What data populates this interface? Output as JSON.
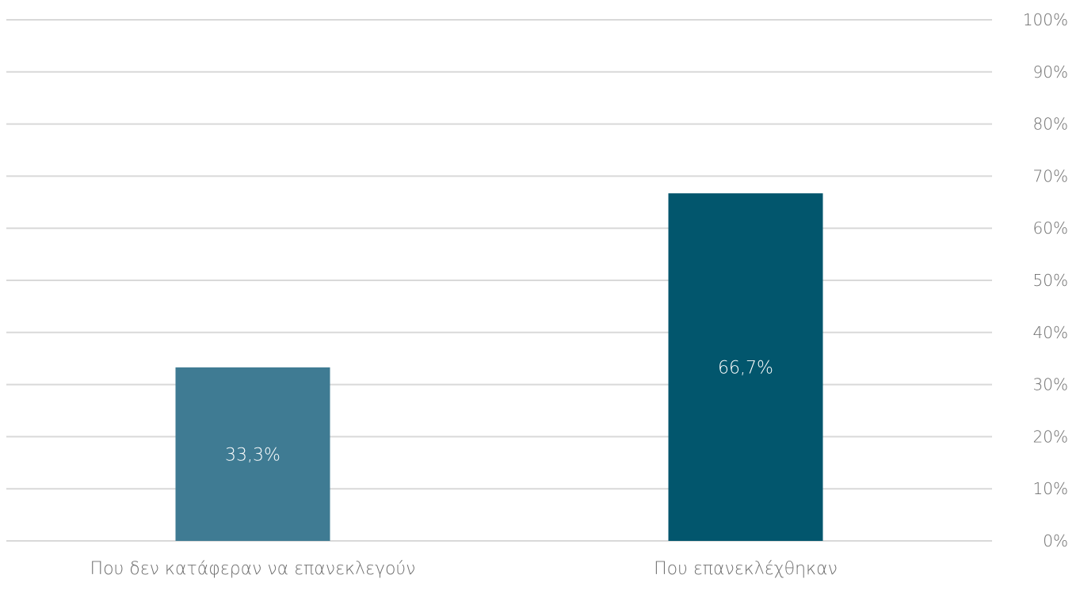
{
  "chart_data": {
    "type": "bar",
    "categories": [
      "Που δεν κατάφεραν να επανεκλεγούν",
      "Που επανεκλέχθηκαν"
    ],
    "values": [
      33.3,
      66.7
    ],
    "data_labels": [
      "33,3%",
      "66,7%"
    ],
    "bar_colors": [
      "#3f7b93",
      "#02566d"
    ],
    "ylim": [
      0,
      100
    ],
    "y_ticks": [
      0,
      10,
      20,
      30,
      40,
      50,
      60,
      70,
      80,
      90,
      100
    ],
    "y_tick_labels": [
      "0%",
      "10%",
      "20%",
      "30%",
      "40%",
      "50%",
      "60%",
      "70%",
      "80%",
      "90%",
      "100%"
    ],
    "y_axis_side": "right",
    "grid": true,
    "title": "",
    "xlabel": "",
    "ylabel": ""
  }
}
